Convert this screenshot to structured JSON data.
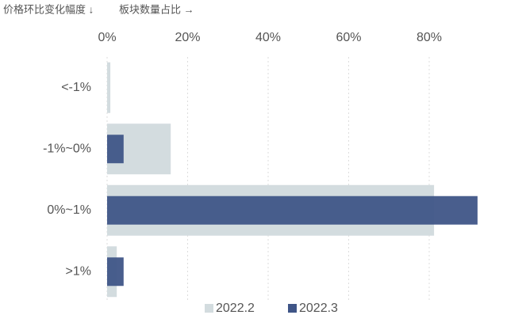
{
  "chart_data": {
    "type": "hbar",
    "y_label": "价格环比变化幅度 ↓",
    "x_label": "板块数量占比 →",
    "categories": [
      "<-1%",
      "-1%~0%",
      "0%~1%",
      ">1%"
    ],
    "series": [
      {
        "name": "2022.2",
        "color": "#d3dcdf",
        "values": [
          0.8,
          15.8,
          81.2,
          2.4
        ]
      },
      {
        "name": "2022.3",
        "color": "#3f5587",
        "values": [
          0,
          4.1,
          92.0,
          4.1
        ]
      }
    ],
    "xlim": [
      0,
      100
    ],
    "xticks": [
      {
        "value": 0,
        "label": "0%"
      },
      {
        "value": 20,
        "label": "20%"
      },
      {
        "value": 40,
        "label": "40%"
      },
      {
        "value": 60,
        "label": "60%"
      },
      {
        "value": 80,
        "label": "80%"
      }
    ],
    "grid": true
  }
}
